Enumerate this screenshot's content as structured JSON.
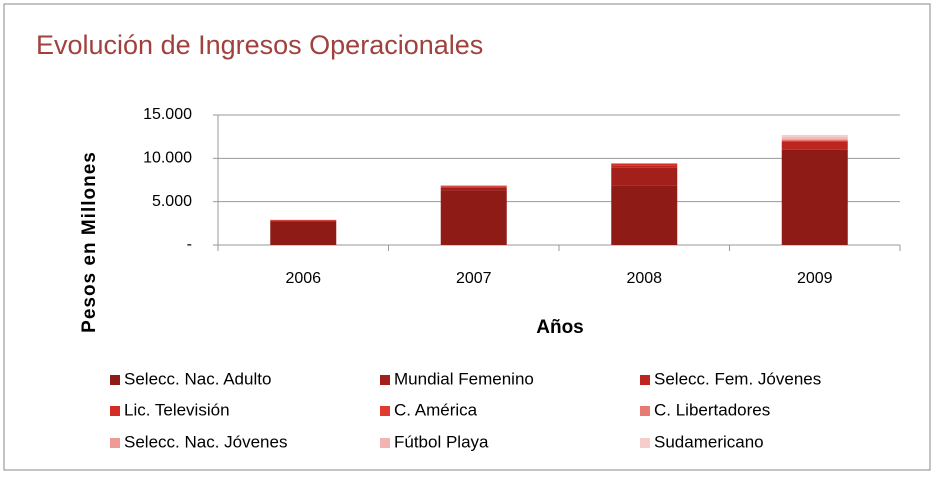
{
  "chart_data": {
    "type": "stacked_bar",
    "title": "Evolución de Ingresos Operacionales",
    "y_label": "Pesos en Millones",
    "x_label": "Años",
    "categories": [
      "2006",
      "2007",
      "2008",
      "2009"
    ],
    "ylim": [
      0,
      15000
    ],
    "yticks": [
      {
        "value": 0,
        "label": "-"
      },
      {
        "value": 5000,
        "label": "5.000"
      },
      {
        "value": 10000,
        "label": "10.000"
      },
      {
        "value": 15000,
        "label": "15.000"
      }
    ],
    "grid": true,
    "legend": "bottom",
    "series": [
      {
        "name": "Selecc. Nac. Adulto",
        "color": "#8e1b16",
        "values": [
          2700,
          6300,
          6900,
          11000
        ]
      },
      {
        "name": "Mundial Femenino",
        "color": "#a31f1a",
        "values": [
          100,
          300,
          2000,
          0
        ]
      },
      {
        "name": "Selecc. Fem. Jóvenes",
        "color": "#bd2620",
        "values": [
          0,
          100,
          300,
          900
        ]
      },
      {
        "name": "Lic. Televisión",
        "color": "#d42d26",
        "values": [
          100,
          100,
          150,
          100
        ]
      },
      {
        "name": "C. América",
        "color": "#e23a2e",
        "values": [
          0,
          0,
          50,
          0
        ]
      },
      {
        "name": "C. Libertadores",
        "color": "#e77a72",
        "values": [
          0,
          0,
          0,
          150
        ]
      },
      {
        "name": "Selecc. Nac. Jóvenes",
        "color": "#ef9a96",
        "values": [
          0,
          100,
          0,
          100
        ]
      },
      {
        "name": "Fútbol Playa",
        "color": "#f3b3b0",
        "values": [
          0,
          0,
          50,
          200
        ]
      },
      {
        "name": "Sudamericano",
        "color": "#f7cdcb",
        "values": [
          0,
          0,
          0,
          250
        ]
      }
    ]
  }
}
